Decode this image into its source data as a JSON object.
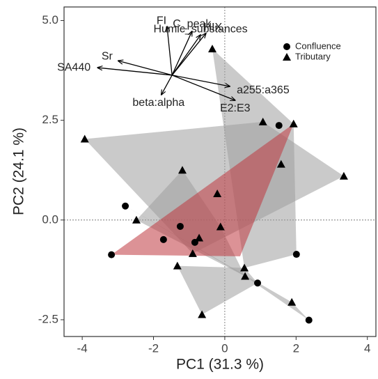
{
  "chart_data": {
    "type": "biplot",
    "x_label": "PC1 (31.3 %)",
    "y_label": "PC2 (24.1 %)",
    "xlim": [
      -4.51,
      4.24
    ],
    "ylim": [
      -2.92,
      5.34
    ],
    "xticks": [
      -4,
      -2,
      0,
      2,
      4
    ],
    "yticks": [
      {
        "value": 5,
        "label": "5.0"
      },
      {
        "value": 2.5,
        "label": "2.5"
      },
      {
        "value": 0,
        "label": "0.0"
      },
      {
        "value": -2.5,
        "label": "-2.5"
      }
    ],
    "series": [
      {
        "name": "Confluence",
        "marker": "circle",
        "color": "#000000",
        "x": [
          1.52,
          -2.79,
          -1.25,
          -1.72,
          -0.84,
          -3.18,
          2.01,
          0.92,
          2.36
        ],
        "values": [
          2.37,
          0.35,
          -0.16,
          -0.49,
          -0.56,
          -0.87,
          -0.86,
          -1.58,
          -2.51
        ]
      },
      {
        "name": "Tributary",
        "marker": "triangle",
        "color": "#000000",
        "x": [
          -0.35,
          1.07,
          1.93,
          -3.93,
          1.58,
          3.34,
          -1.19,
          -0.21,
          -2.48,
          -0.12,
          -0.72,
          -0.9,
          -1.33,
          0.55,
          0.57,
          1.88,
          -0.64
        ],
        "values": [
          4.29,
          2.46,
          2.41,
          2.03,
          1.4,
          1.1,
          1.25,
          0.66,
          0,
          -0.17,
          -0.45,
          -0.84,
          -1.15,
          -1.2,
          -1.41,
          -2.06,
          -2.37
        ]
      }
    ],
    "hulls": [
      {
        "color": "#9e9e9e",
        "x": [
          -3.93,
          1.07,
          3.34,
          -0.9
        ],
        "values": [
          2.03,
          2.46,
          1.1,
          -0.84
        ]
      },
      {
        "color": "#9e9e9e",
        "x": [
          -0.35,
          1.93,
          2.01,
          0.55
        ],
        "values": [
          4.29,
          2.41,
          -0.86,
          -1.2
        ]
      },
      {
        "color": "#9e9e9e",
        "x": [
          -1.19,
          -2.48,
          0.57,
          -0.12
        ],
        "values": [
          1.25,
          0,
          -1.41,
          -0.17
        ]
      },
      {
        "color": "#9e9e9e",
        "x": [
          -2.79,
          0.57,
          2.36,
          1.88
        ],
        "values": [
          0.35,
          -1.41,
          -2.51,
          -2.06
        ]
      },
      {
        "color": "#9e9e9e",
        "x": [
          -1.33,
          0.55,
          0.92,
          -0.64
        ],
        "values": [
          -1.15,
          -1.2,
          -1.58,
          -2.37
        ]
      },
      {
        "color": "#c0393f",
        "x": [
          -3.18,
          1.93,
          0.43
        ],
        "values": [
          -0.87,
          2.41,
          -0.91
        ]
      }
    ],
    "loading_origin": [
      -1.48,
      3.63
    ],
    "loadings": [
      {
        "name": "C_peak",
        "x": -0.92,
        "y": 4.73
      },
      {
        "name": "Humic_substances",
        "x": -0.68,
        "y": 4.64
      },
      {
        "name": "HIX",
        "x": -0.53,
        "y": 4.68
      },
      {
        "name": "FI",
        "x": -1.62,
        "y": 4.85
      },
      {
        "name": "Sr",
        "x": -2.99,
        "y": 3.99
      },
      {
        "name": "SA440",
        "x": -3.57,
        "y": 3.82
      },
      {
        "name": "a255:a365",
        "x": 0.14,
        "y": 3.35
      },
      {
        "name": "E2:E3",
        "x": 0.29,
        "y": 3.0
      },
      {
        "name": "beta:alpha",
        "x": -1.78,
        "y": 3.14
      }
    ]
  }
}
